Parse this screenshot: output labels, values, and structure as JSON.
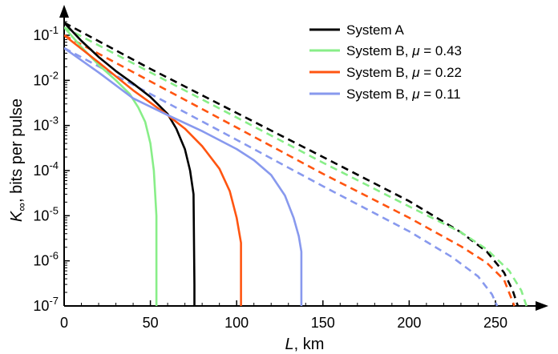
{
  "chart_data": {
    "type": "line",
    "title": "",
    "xlabel_main": "L",
    "xlabel_unit": ", km",
    "ylabel_main": "K",
    "ylabel_sub": "∞",
    "ylabel_rest": ", bits per pulse",
    "xlim": [
      0,
      270
    ],
    "ylim": [
      1e-07,
      0.3
    ],
    "yscale": "log",
    "x_ticks": [
      {
        "value": 0,
        "label": "0"
      },
      {
        "value": 50,
        "label": "50"
      },
      {
        "value": 100,
        "label": "100"
      },
      {
        "value": 150,
        "label": "150"
      },
      {
        "value": 200,
        "label": "200"
      },
      {
        "value": 250,
        "label": "250"
      }
    ],
    "y_ticks": [
      {
        "value": 0.1,
        "base": "10",
        "exp": "-1"
      },
      {
        "value": 0.01,
        "base": "10",
        "exp": "-2"
      },
      {
        "value": 0.001,
        "base": "10",
        "exp": "-3"
      },
      {
        "value": 0.0001,
        "base": "10",
        "exp": "-4"
      },
      {
        "value": 1e-05,
        "base": "10",
        "exp": "-5"
      },
      {
        "value": 1e-06,
        "base": "10",
        "exp": "-6"
      },
      {
        "value": 1e-07,
        "base": "10",
        "exp": "-7"
      }
    ],
    "grid": false,
    "legend_position": "top-right",
    "legend": [
      {
        "text": "System A",
        "color": "#000000"
      },
      {
        "text": "System B, ",
        "mu": "μ",
        "value": " = 0.43",
        "color": "#88ee88"
      },
      {
        "text": "System B, ",
        "mu": "μ",
        "value": " = 0.22",
        "color": "#ff5511"
      },
      {
        "text": "System B, ",
        "mu": "μ",
        "value": " = 0.11",
        "color": "#8899ee"
      }
    ],
    "series": [
      {
        "name": "System A",
        "style": "solid",
        "color": "#000000",
        "points": [
          [
            0,
            0.19
          ],
          [
            10,
            0.075
          ],
          [
            20,
            0.033
          ],
          [
            30,
            0.016
          ],
          [
            40,
            0.0085
          ],
          [
            50,
            0.0043
          ],
          [
            60,
            0.0018
          ],
          [
            65,
            0.00085
          ],
          [
            70,
            0.0003
          ],
          [
            73,
            0.0001
          ],
          [
            75,
            3e-05
          ],
          [
            75.5,
            3e-07
          ],
          [
            75.5,
            1e-07
          ]
        ]
      },
      {
        "name": "System B, μ = 0.43",
        "style": "solid",
        "color": "#88ee88",
        "points": [
          [
            0,
            0.15
          ],
          [
            10,
            0.055
          ],
          [
            20,
            0.022
          ],
          [
            30,
            0.01
          ],
          [
            38,
            0.005
          ],
          [
            43,
            0.0025
          ],
          [
            47,
            0.0012
          ],
          [
            50,
            0.0004
          ],
          [
            52,
            0.0001
          ],
          [
            53.5,
            1e-05
          ],
          [
            53.5,
            1e-07
          ]
        ]
      },
      {
        "name": "System B, μ = 0.22",
        "style": "solid",
        "color": "#ff5511",
        "points": [
          [
            0,
            0.1
          ],
          [
            20,
            0.025
          ],
          [
            40,
            0.006
          ],
          [
            60,
            0.0017
          ],
          [
            70,
            0.00085
          ],
          [
            80,
            0.00035
          ],
          [
            90,
            0.00011
          ],
          [
            96,
            3.5e-05
          ],
          [
            100,
            9e-06
          ],
          [
            102.5,
            2.5e-06
          ],
          [
            102.5,
            1e-07
          ]
        ]
      },
      {
        "name": "System B, μ = 0.11",
        "style": "solid",
        "color": "#8899ee",
        "points": [
          [
            0,
            0.052
          ],
          [
            20,
            0.015
          ],
          [
            40,
            0.004
          ],
          [
            60,
            0.0017
          ],
          [
            80,
            0.00075
          ],
          [
            100,
            0.0003
          ],
          [
            110,
            0.00017
          ],
          [
            120,
            8e-05
          ],
          [
            128,
            2.8e-05
          ],
          [
            133,
            9e-06
          ],
          [
            136,
            3.5e-06
          ],
          [
            137.5,
            1.6e-06
          ],
          [
            137.5,
            1e-07
          ]
        ]
      },
      {
        "name": "System A (dashed)",
        "style": "dashed",
        "color": "#000000",
        "points": [
          [
            0,
            0.19
          ],
          [
            50,
            0.018
          ],
          [
            100,
            0.0019
          ],
          [
            150,
            0.0002
          ],
          [
            200,
            2.1e-05
          ],
          [
            230,
            4.3e-06
          ],
          [
            245,
            1.6e-06
          ],
          [
            255,
            5.5e-07
          ],
          [
            260,
            2.2e-07
          ],
          [
            263,
            1e-07
          ]
        ]
      },
      {
        "name": "System B, μ = 0.43 (dashed)",
        "style": "dashed",
        "color": "#88ee88",
        "points": [
          [
            0,
            0.15
          ],
          [
            50,
            0.015
          ],
          [
            100,
            0.0015
          ],
          [
            150,
            0.00015
          ],
          [
            200,
            1.6e-05
          ],
          [
            230,
            4.3e-06
          ],
          [
            245,
            1.8e-06
          ],
          [
            258,
            6e-07
          ],
          [
            265,
            2.2e-07
          ],
          [
            268,
            1e-07
          ]
        ]
      },
      {
        "name": "System B, μ = 0.22 (dashed)",
        "style": "dashed",
        "color": "#ff5511",
        "points": [
          [
            0,
            0.1
          ],
          [
            50,
            0.0095
          ],
          [
            100,
            0.0009
          ],
          [
            150,
            8.5e-05
          ],
          [
            200,
            9e-06
          ],
          [
            230,
            2.1e-06
          ],
          [
            245,
            9e-07
          ],
          [
            255,
            3.8e-07
          ],
          [
            261,
            1e-07
          ]
        ]
      },
      {
        "name": "System B, μ = 0.11 (dashed)",
        "style": "dashed",
        "color": "#8899ee",
        "points": [
          [
            0,
            0.052
          ],
          [
            50,
            0.005
          ],
          [
            100,
            0.00048
          ],
          [
            150,
            4.5e-05
          ],
          [
            200,
            4.5e-06
          ],
          [
            225,
            1.2e-06
          ],
          [
            240,
            4.5e-07
          ],
          [
            248,
            1.8e-07
          ],
          [
            251,
            1e-07
          ]
        ]
      }
    ]
  }
}
